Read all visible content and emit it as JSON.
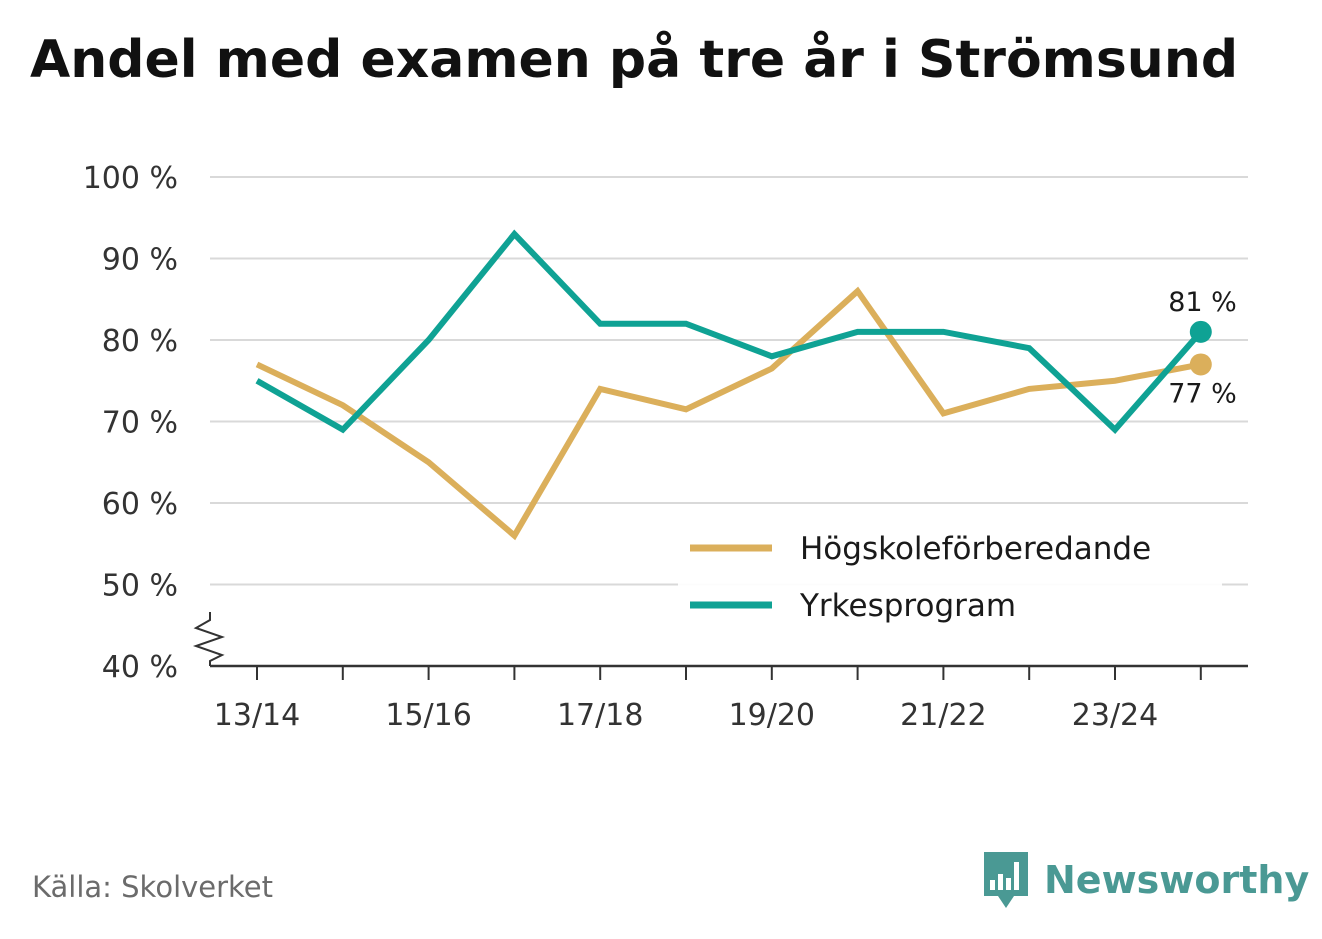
{
  "title": "Andel med examen på tre år i Strömsund",
  "source": "Källa: Skolverket",
  "brand": {
    "name": "Newsworthy",
    "icon": "newsworthy-logo-icon",
    "color": "#4a9994"
  },
  "colors": {
    "grid": "#d9d9d9",
    "axis": "#333333"
  },
  "chart_data": {
    "type": "line",
    "title": "Andel med examen på tre år i Strömsund",
    "x": [
      "13/14",
      "14/15",
      "15/16",
      "16/17",
      "17/18",
      "18/19",
      "19/20",
      "20/21",
      "21/22",
      "22/23",
      "23/24",
      "24/25"
    ],
    "x_tick_labels": [
      "13/14",
      "15/16",
      "17/18",
      "19/20",
      "21/22",
      "23/24"
    ],
    "y_tick_labels": [
      "40 %",
      "50 %",
      "60 %",
      "70 %",
      "80 %",
      "90 %",
      "100 %"
    ],
    "ylim": [
      40,
      100
    ],
    "y_axis_break": true,
    "grid": true,
    "legend_position": "bottom-right",
    "series": [
      {
        "name": "Högskoleförberedande",
        "color": "#dbaf5b",
        "values": [
          77,
          72,
          65,
          56,
          74,
          71.5,
          76.5,
          86,
          71,
          74,
          75,
          77
        ],
        "end_label": "77 %"
      },
      {
        "name": "Yrkesprogram",
        "color": "#0fa294",
        "values": [
          75,
          69,
          80,
          93,
          82,
          82,
          78,
          81,
          81,
          79,
          69,
          81
        ],
        "end_label": "81 %"
      }
    ]
  }
}
